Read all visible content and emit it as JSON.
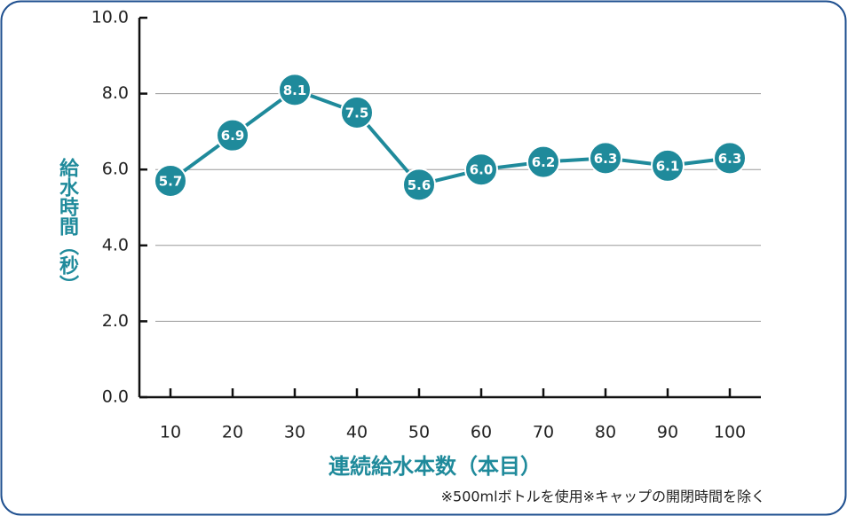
{
  "chart_data": {
    "type": "line",
    "y_label": "給水時間（秒）",
    "x_label": "連続給水本数（本目）",
    "note": "※500mlボトルを使用※キャップの開閉時間を除く",
    "x": [
      10,
      20,
      30,
      40,
      50,
      60,
      70,
      80,
      90,
      100
    ],
    "series": [
      {
        "color": "#1f8a9b",
        "values": [
          5.7,
          6.9,
          8.1,
          7.5,
          5.6,
          6.0,
          6.2,
          6.3,
          6.1,
          6.3
        ],
        "value_labels": [
          "5.7",
          "6.9",
          "8.1",
          "7.5",
          "5.6",
          "6.0",
          "6.2",
          "6.3",
          "6.1",
          "6.3"
        ]
      }
    ],
    "xlim": [
      5,
      105
    ],
    "ylim": [
      0,
      10
    ],
    "xticks": [
      10,
      20,
      30,
      40,
      50,
      60,
      70,
      80,
      90,
      100
    ],
    "yticks": [
      {
        "value": 0,
        "label": "0.0"
      },
      {
        "value": 2,
        "label": "2.0"
      },
      {
        "value": 4,
        "label": "4.0"
      },
      {
        "value": 6,
        "label": "6.0"
      },
      {
        "value": 8,
        "label": "8.0"
      },
      {
        "value": 10,
        "label": "10.0"
      }
    ],
    "grid": true
  }
}
